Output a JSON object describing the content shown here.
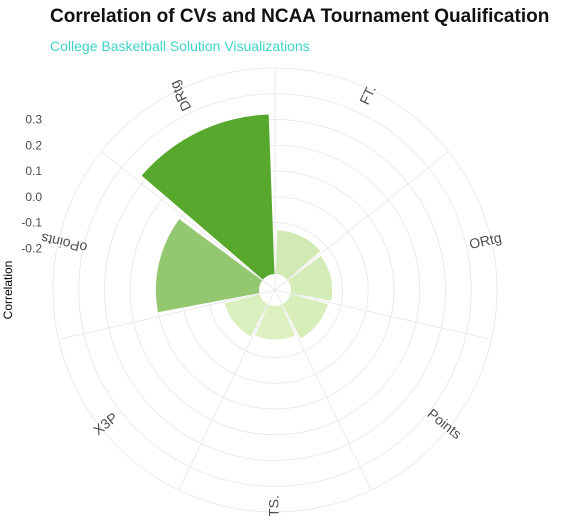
{
  "chart_data": {
    "type": "bar",
    "coordinate_system": "polar",
    "title": "Correlation of CVs and NCAA Tournament Qualification",
    "subtitle": "College Basketball Solution Visualizations",
    "ylabel": "Correlation",
    "xlabel": "",
    "categories": [
      "FT.",
      "ORtg",
      "Points",
      "TS.",
      "X3P",
      "oPoints",
      "DRtg"
    ],
    "values": [
      -0.13,
      -0.14,
      -0.15,
      -0.17,
      -0.16,
      0.1,
      0.32
    ],
    "ylim": [
      -0.3,
      0.5
    ],
    "y_ticks": [
      -0.2,
      -0.1,
      0.0,
      0.1,
      0.2,
      0.3
    ],
    "y_tick_labels": [
      "-0.2",
      "-0.1",
      "0.0",
      "0.1",
      "0.2",
      "0.3"
    ],
    "grid": true,
    "legend": "none",
    "colors": {
      "low": "#dcf0c0",
      "high": "#58a82e",
      "grid": "#e6e6e6",
      "subtitle": "#3ed3c8"
    }
  }
}
